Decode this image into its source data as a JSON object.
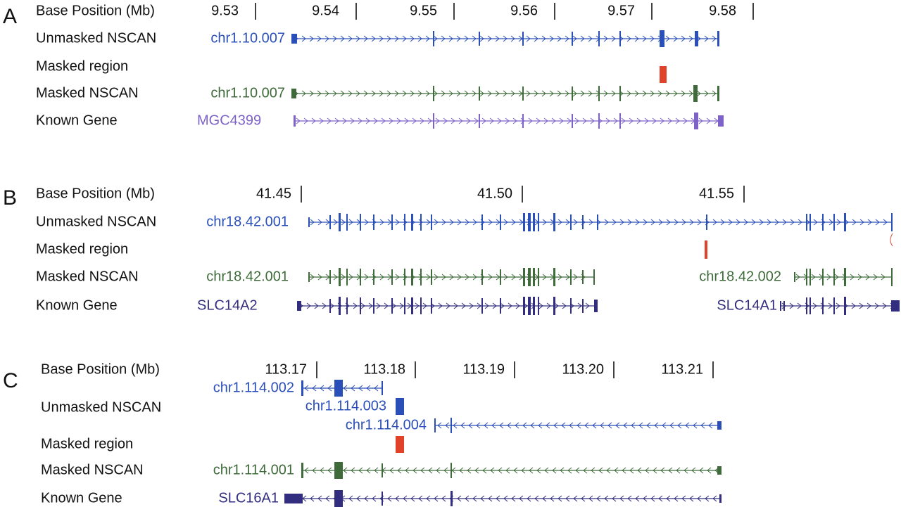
{
  "colors": {
    "unmasked": "#2a4fb8",
    "masked_region": "#e0432a",
    "masked_nscan": "#3f6b3a",
    "known_gene_a": "#7d62c8",
    "known_gene_bc": "#332d80",
    "label": "#111111"
  },
  "panels": [
    {
      "letter": "A",
      "row_labels": {
        "base_position": "Base Position (Mb)",
        "unmasked": "Unmasked NSCAN",
        "masked_region": "Masked region",
        "masked_nscan": "Masked NSCAN",
        "known_gene": "Known Gene"
      },
      "ticks": [
        "9.53",
        "9.54",
        "9.55",
        "9.56",
        "9.57",
        "9.58"
      ],
      "tracks": [
        {
          "id": "a-unmasked",
          "track": "unmasked",
          "name": "chr1.10.007",
          "strand": "+"
        },
        {
          "id": "a-masked-region",
          "track": "masked_region"
        },
        {
          "id": "a-masked-nscan",
          "track": "masked_nscan",
          "name": "chr1.10.007",
          "strand": "+"
        },
        {
          "id": "a-known",
          "track": "known_gene",
          "name": "MGC4399",
          "strand": "+"
        }
      ]
    },
    {
      "letter": "B",
      "row_labels": {
        "base_position": "Base Position (Mb)",
        "unmasked": "Unmasked NSCAN",
        "masked_region": "Masked region",
        "masked_nscan": "Masked NSCAN",
        "known_gene": "Known Gene"
      },
      "ticks": [
        "41.45",
        "41.50",
        "41.55"
      ],
      "tracks": [
        {
          "id": "b-unmasked",
          "track": "unmasked",
          "name": "chr18.42.001",
          "strand": "+"
        },
        {
          "id": "b-masked-region",
          "track": "masked_region"
        },
        {
          "id": "b-masked-nscan-1",
          "track": "masked_nscan",
          "name": "chr18.42.001",
          "strand": "+"
        },
        {
          "id": "b-masked-nscan-2",
          "track": "masked_nscan",
          "name": "chr18.42.002",
          "strand": "+"
        },
        {
          "id": "b-known-1",
          "track": "known_gene",
          "name": "SLC14A2",
          "strand": "+"
        },
        {
          "id": "b-known-2",
          "track": "known_gene",
          "name": "SLC14A1",
          "strand": "+"
        }
      ]
    },
    {
      "letter": "C",
      "row_labels": {
        "base_position": "Base Position (Mb)",
        "unmasked": "Unmasked NSCAN",
        "masked_region": "Masked region",
        "masked_nscan": "Masked NSCAN",
        "known_gene": "Known Gene"
      },
      "ticks": [
        "113.17",
        "113.18",
        "113.19",
        "113.20",
        "113.21"
      ],
      "tracks": [
        {
          "id": "c-unmasked-1",
          "track": "unmasked",
          "name": "chr1.114.002",
          "strand": "-"
        },
        {
          "id": "c-unmasked-2",
          "track": "unmasked",
          "name": "chr1.114.003",
          "strand": "-"
        },
        {
          "id": "c-unmasked-3",
          "track": "unmasked",
          "name": "chr1.114.004",
          "strand": "-"
        },
        {
          "id": "c-masked-region",
          "track": "masked_region"
        },
        {
          "id": "c-masked-nscan",
          "track": "masked_nscan",
          "name": "chr1.114.001",
          "strand": "-"
        },
        {
          "id": "c-known",
          "track": "known_gene",
          "name": "SLC16A1",
          "strand": "-"
        }
      ]
    }
  ]
}
